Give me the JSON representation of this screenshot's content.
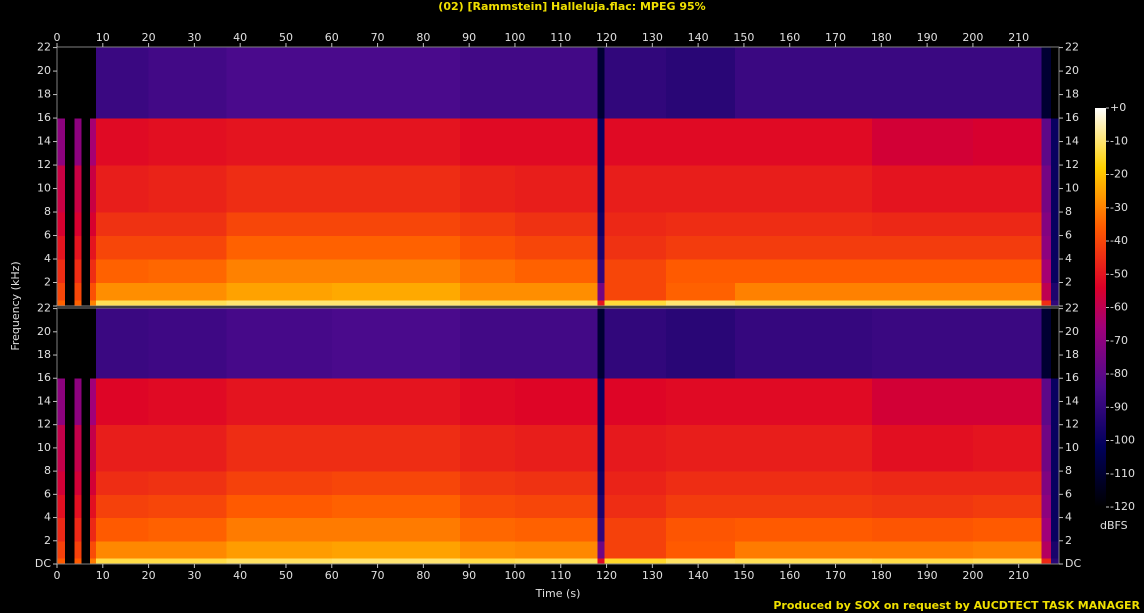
{
  "chart_data": {
    "type": "spectrogram",
    "title": "(02) [Rammstein] Halleluja.flac: MPEG 95%",
    "xlabel": "Time (s)",
    "ylabel": "Frequency (kHz)",
    "colorbar_label": "dBFS",
    "footer": "Produced by SOX on request by AUCDTECT TASK MANAGER",
    "xlim": [
      0,
      218.8
    ],
    "xticks": [
      0,
      10,
      20,
      30,
      40,
      50,
      60,
      70,
      80,
      90,
      100,
      110,
      120,
      130,
      140,
      150,
      160,
      170,
      180,
      190,
      200,
      210
    ],
    "ylim": [
      0,
      22.05
    ],
    "yticks": [
      {
        "value": 0,
        "label": "DC"
      },
      2,
      4,
      6,
      8,
      10,
      12,
      14,
      16,
      18,
      20,
      22
    ],
    "zlim": [
      -120,
      0
    ],
    "zticks": [
      {
        "value": 0,
        "label": "+0"
      },
      -10,
      -20,
      -30,
      -40,
      -50,
      -60,
      -70,
      -80,
      -90,
      -100,
      -110,
      -120
    ],
    "colormap": [
      [
        0,
        "#000000"
      ],
      [
        0.15,
        "#00005a"
      ],
      [
        0.3,
        "#4a0a8c"
      ],
      [
        0.45,
        "#a0007a"
      ],
      [
        0.55,
        "#dc0028"
      ],
      [
        0.7,
        "#ff5a00"
      ],
      [
        0.85,
        "#ffd000"
      ],
      [
        1,
        "#ffffff"
      ]
    ],
    "time_bins": [
      0,
      1.7,
      3.8,
      5.3,
      7.2,
      8.5,
      20,
      37,
      60,
      88,
      100,
      118,
      119.5,
      133,
      148,
      178,
      200,
      215,
      217,
      218.8
    ],
    "freq_bins": [
      0,
      0.5,
      2,
      4,
      6,
      8,
      12,
      16,
      22.05
    ],
    "channels": [
      {
        "values": [
          [
            -35,
            -120,
            -35,
            -120,
            -30,
            -12,
            -12,
            -10,
            -10,
            -12,
            -12,
            -50,
            -14,
            -10,
            -12,
            -12,
            -12,
            -45,
            -90
          ],
          [
            -40,
            -120,
            -40,
            -120,
            -38,
            -28,
            -28,
            -25,
            -24,
            -28,
            -28,
            -75,
            -40,
            -35,
            -30,
            -30,
            -30,
            -60,
            -95
          ],
          [
            -45,
            -120,
            -45,
            -120,
            -45,
            -35,
            -34,
            -30,
            -30,
            -33,
            -35,
            -90,
            -40,
            -36,
            -36,
            -36,
            -36,
            -65,
            -100
          ],
          [
            -50,
            -120,
            -50,
            -120,
            -50,
            -40,
            -40,
            -35,
            -35,
            -38,
            -40,
            -95,
            -44,
            -42,
            -42,
            -42,
            -42,
            -70,
            -100
          ],
          [
            -55,
            -120,
            -55,
            -120,
            -55,
            -44,
            -44,
            -40,
            -40,
            -42,
            -44,
            -98,
            -46,
            -45,
            -45,
            -46,
            -46,
            -72,
            -100
          ],
          [
            -58,
            -120,
            -58,
            -120,
            -58,
            -48,
            -47,
            -45,
            -45,
            -47,
            -48,
            -100,
            -48,
            -48,
            -48,
            -50,
            -50,
            -75,
            -100
          ],
          [
            -70,
            -120,
            -70,
            -120,
            -65,
            -52,
            -51,
            -50,
            -50,
            -52,
            -52,
            -100,
            -52,
            -52,
            -52,
            -56,
            -55,
            -80,
            -100
          ],
          [
            -120,
            -120,
            -120,
            -120,
            -120,
            -88,
            -86,
            -84,
            -84,
            -86,
            -86,
            -110,
            -90,
            -92,
            -88,
            -88,
            -88,
            -110,
            -120
          ]
        ]
      },
      {
        "values": [
          [
            -36,
            -120,
            -36,
            -120,
            -31,
            -13,
            -13,
            -11,
            -10,
            -13,
            -12,
            -52,
            -15,
            -11,
            -12,
            -13,
            -12,
            -46,
            -92
          ],
          [
            -41,
            -120,
            -41,
            -120,
            -39,
            -29,
            -29,
            -26,
            -25,
            -28,
            -29,
            -76,
            -41,
            -36,
            -31,
            -31,
            -30,
            -62,
            -96
          ],
          [
            -46,
            -120,
            -46,
            -120,
            -46,
            -36,
            -35,
            -31,
            -31,
            -34,
            -35,
            -90,
            -41,
            -37,
            -36,
            -37,
            -36,
            -66,
            -100
          ],
          [
            -51,
            -120,
            -51,
            -120,
            -51,
            -41,
            -40,
            -36,
            -35,
            -39,
            -40,
            -95,
            -45,
            -42,
            -42,
            -43,
            -42,
            -70,
            -100
          ],
          [
            -56,
            -120,
            -56,
            -120,
            -56,
            -45,
            -44,
            -41,
            -40,
            -43,
            -44,
            -98,
            -47,
            -45,
            -45,
            -46,
            -46,
            -73,
            -100
          ],
          [
            -59,
            -120,
            -59,
            -120,
            -59,
            -48,
            -48,
            -45,
            -45,
            -47,
            -48,
            -100,
            -49,
            -48,
            -48,
            -51,
            -50,
            -76,
            -100
          ],
          [
            -70,
            -120,
            -70,
            -120,
            -66,
            -53,
            -52,
            -50,
            -50,
            -52,
            -53,
            -100,
            -53,
            -52,
            -52,
            -56,
            -56,
            -80,
            -100
          ],
          [
            -120,
            -120,
            -120,
            -120,
            -120,
            -88,
            -87,
            -85,
            -84,
            -86,
            -86,
            -110,
            -90,
            -92,
            -89,
            -88,
            -88,
            -110,
            -120
          ]
        ]
      }
    ]
  }
}
